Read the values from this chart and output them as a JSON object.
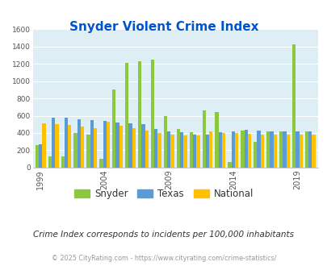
{
  "title": "Snyder Violent Crime Index",
  "subtitle": "Crime Index corresponds to incidents per 100,000 inhabitants",
  "copyright": "© 2025 CityRating.com - https://www.cityrating.com/crime-statistics/",
  "years": [
    1999,
    2000,
    2001,
    2002,
    2003,
    2004,
    2005,
    2006,
    2007,
    2008,
    2009,
    2010,
    2011,
    2012,
    2013,
    2014,
    2015,
    2016,
    2017,
    2018,
    2019,
    2020
  ],
  "snyder": [
    260,
    130,
    130,
    400,
    380,
    100,
    900,
    1210,
    1230,
    1250,
    600,
    450,
    410,
    660,
    640,
    65,
    430,
    300,
    420,
    420,
    1430,
    420
  ],
  "texas": [
    270,
    580,
    580,
    560,
    550,
    540,
    520,
    510,
    500,
    450,
    420,
    410,
    380,
    380,
    410,
    420,
    440,
    430,
    420,
    420,
    420,
    420
  ],
  "national": [
    510,
    500,
    490,
    470,
    460,
    530,
    480,
    460,
    430,
    400,
    380,
    370,
    375,
    420,
    400,
    400,
    390,
    380,
    380,
    380,
    380,
    380
  ],
  "snyder_color": "#8dc63f",
  "texas_color": "#5b9bd5",
  "national_color": "#ffc000",
  "bg_color": "#ddeef5",
  "ylim": [
    0,
    1600
  ],
  "yticks": [
    0,
    200,
    400,
    600,
    800,
    1000,
    1200,
    1400,
    1600
  ],
  "title_color": "#0055cc",
  "subtitle_color": "#333333",
  "copyright_color": "#999999",
  "legend_labels": [
    "Snyder",
    "Texas",
    "National"
  ],
  "tick_years": [
    1999,
    2004,
    2009,
    2014,
    2019
  ]
}
